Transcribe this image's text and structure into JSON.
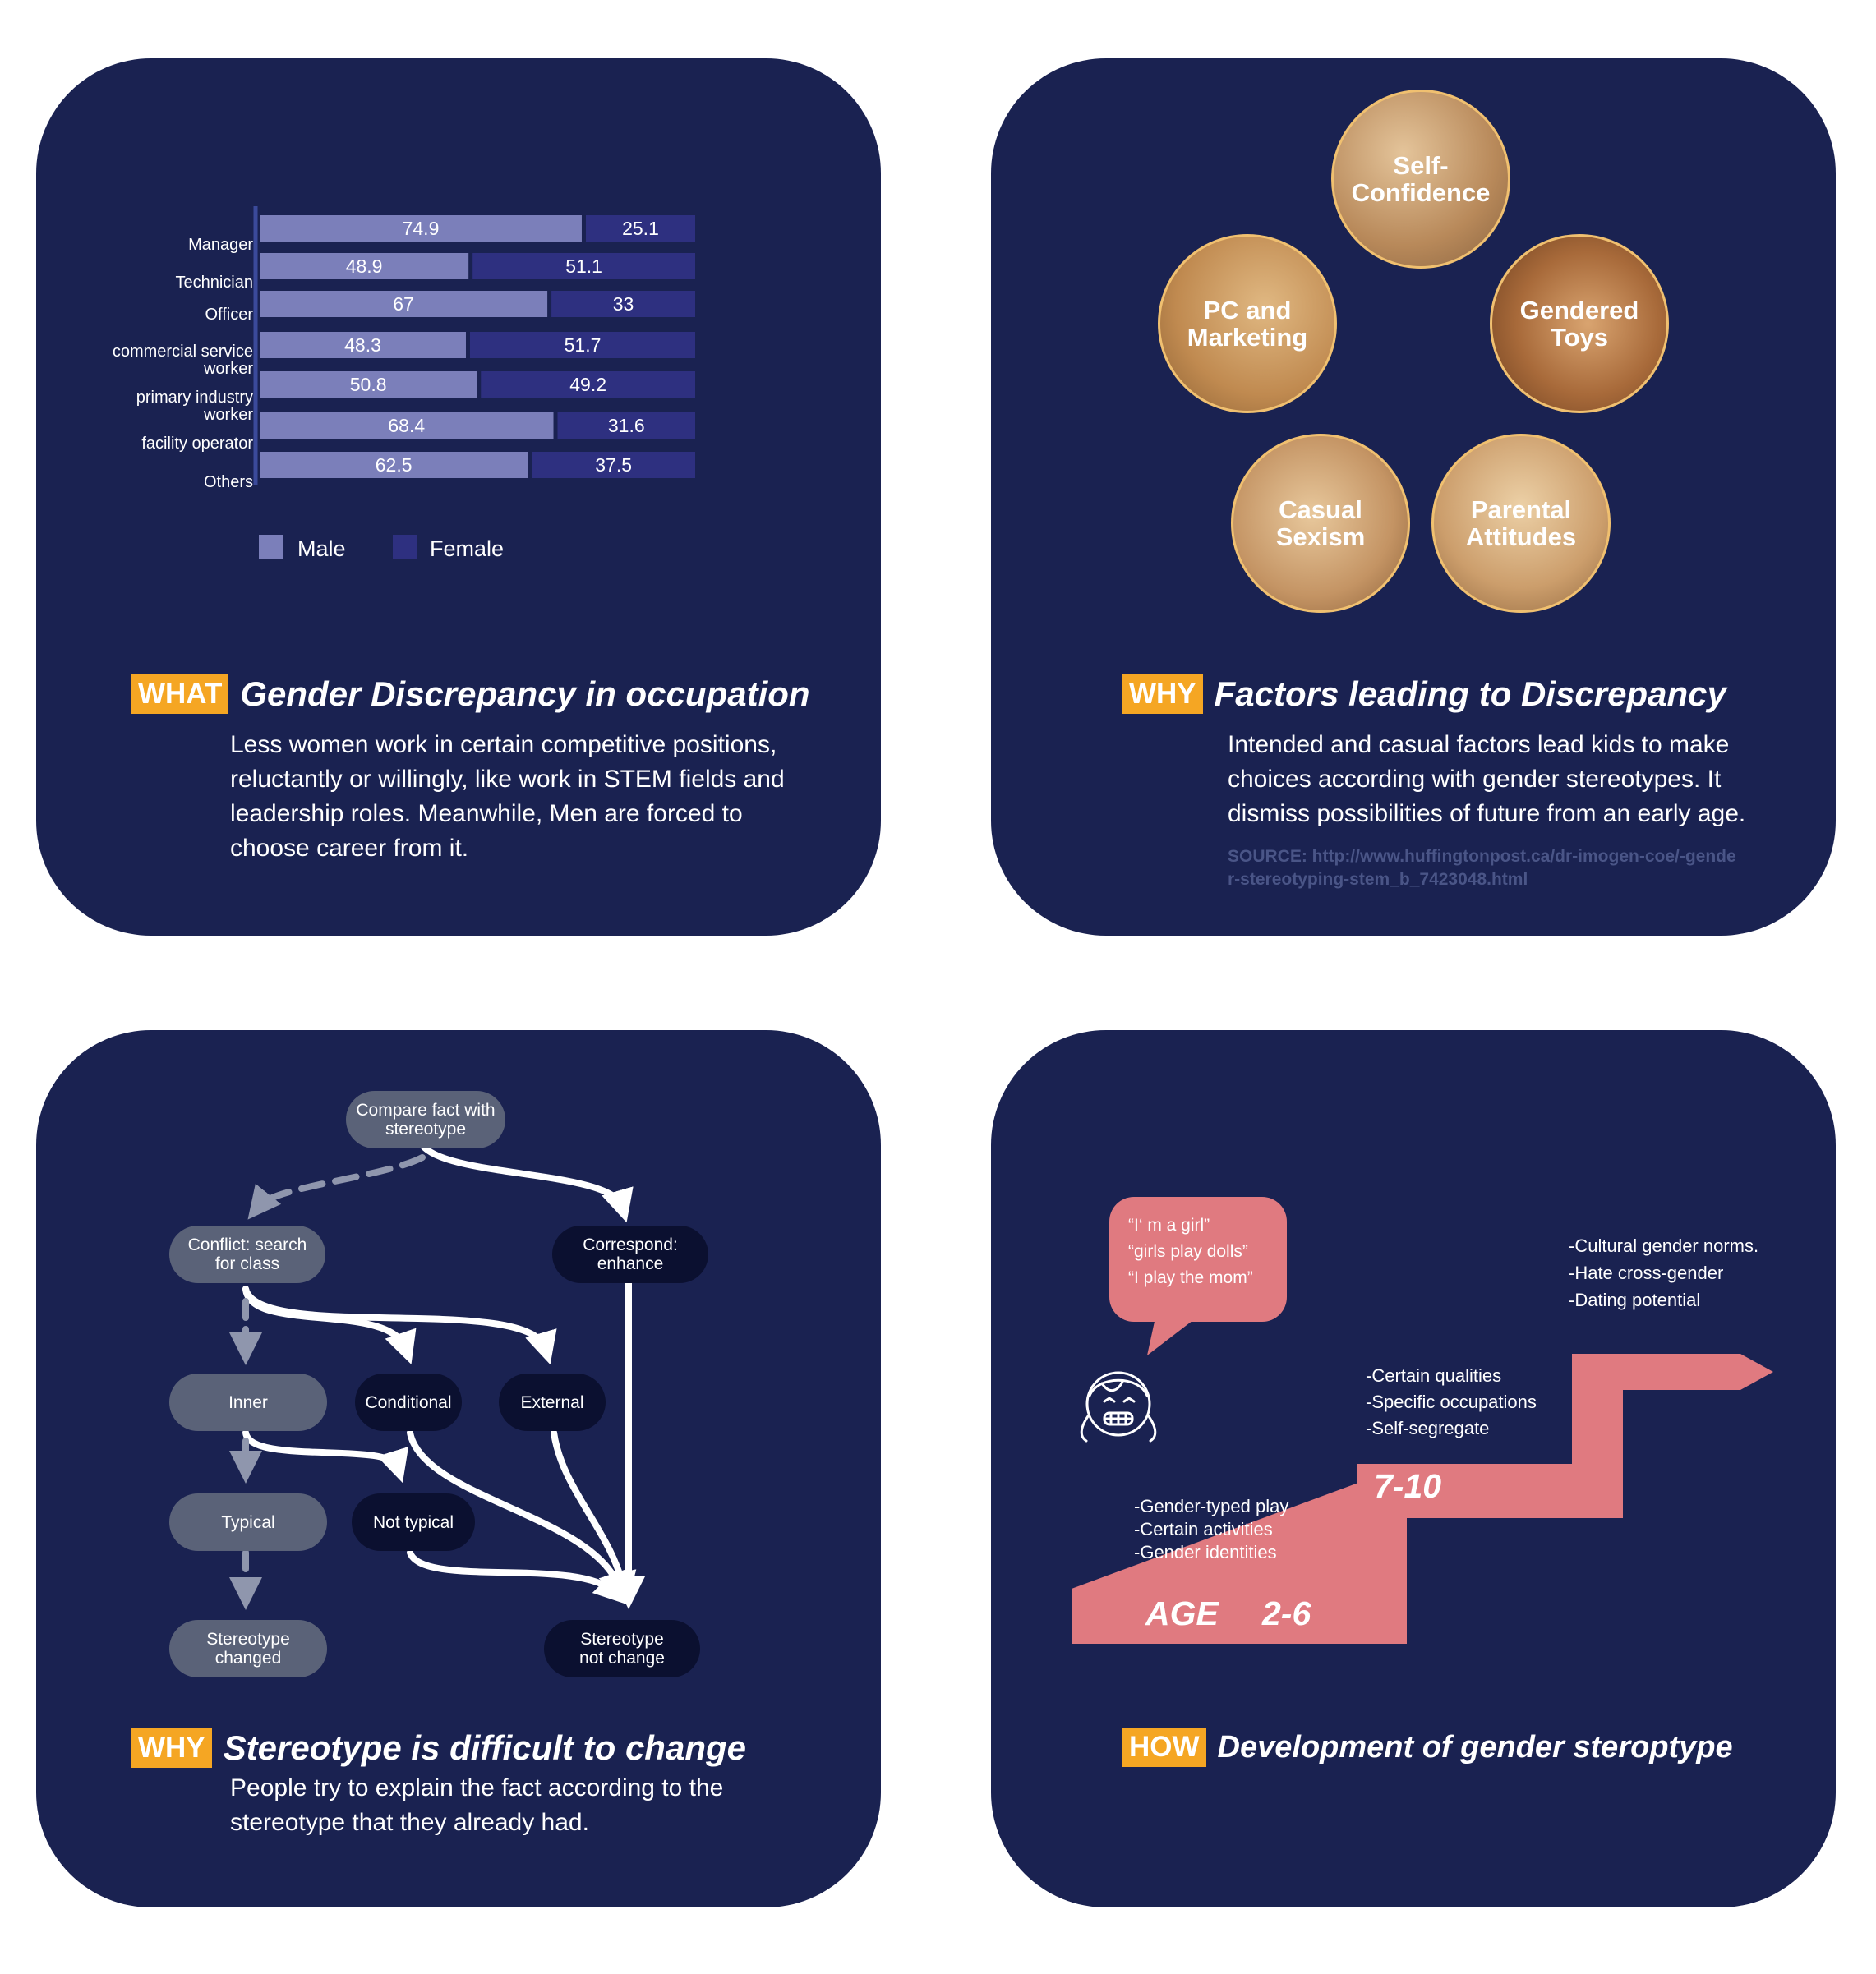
{
  "panel1": {
    "tag": "WHAT",
    "title": "Gender Discrepancy in occupation",
    "body": "Less women work in certain competitive positions, reluctantly or willingly, like work in STEM fields and leadership roles. Meanwhile, Men are forced to choose career from it.",
    "chart_data": {
      "type": "bar",
      "stacked": true,
      "orientation": "horizontal",
      "categories": [
        "Manager",
        "Technician",
        "Officer",
        "commercial service worker",
        "primary industry worker",
        "facility operator",
        "Others"
      ],
      "series": [
        {
          "name": "Male",
          "values": [
            74.9,
            48.9,
            67,
            48.3,
            50.8,
            68.4,
            62.5
          ],
          "color": "#7b7fba"
        },
        {
          "name": "Female",
          "values": [
            25.1,
            51.1,
            33,
            51.7,
            49.2,
            31.6,
            37.5
          ],
          "color": "#2e3080"
        }
      ],
      "xlim": [
        0,
        100
      ],
      "legend": "bottom"
    }
  },
  "panel2": {
    "tag": "WHY",
    "title": "Factors leading to Discrepancy",
    "body": "Intended and casual factors lead kids to make choices according with gender stereotypes. It dismiss possibilities of future from an early age.",
    "source": "SOURCE: http://www.huffingtonpost.ca/dr-imogen-coe/-gender-stereotyping-stem_b_7423048.html",
    "factors": [
      "Self-Confidence",
      "PC and Marketing",
      "Gendered Toys",
      "Casual Sexism",
      "Parental Attitudes"
    ]
  },
  "panel3": {
    "tag": "WHY",
    "title": "Stereotype is difficult to change",
    "body": "People try to explain the fact according to the stereotype that they already had.",
    "nodes": {
      "compare": "Compare fact with stereotype",
      "conflict": "Conflict: search for class",
      "correspond": "Correspond: enhance",
      "inner": "Inner",
      "conditional": "Conditional",
      "external": "External",
      "typical": "Typical",
      "not_typical": "Not typical",
      "changed": "Stereotype changed",
      "not_change": "Stereotype not change"
    }
  },
  "panel4": {
    "tag": "HOW",
    "title": "Development of gender steroptype",
    "speech": [
      "“I‘ m a girl”",
      "“girls play dolls”",
      "“I play the mom”"
    ],
    "stage1": {
      "label_prefix": "AGE",
      "label": "2-6",
      "items": [
        "-Gender-typed play",
        "-Certain  activities",
        "-Gender identities"
      ]
    },
    "stage2": {
      "label": "7-10",
      "items": [
        "-Certain qualities",
        "-Specific occupations",
        "-Self-segregate"
      ]
    },
    "stage3": {
      "items": [
        "-Cultural gender norms.",
        "-Hate cross-gender",
        "-Dating potential"
      ]
    },
    "accent": "#e07a80"
  }
}
